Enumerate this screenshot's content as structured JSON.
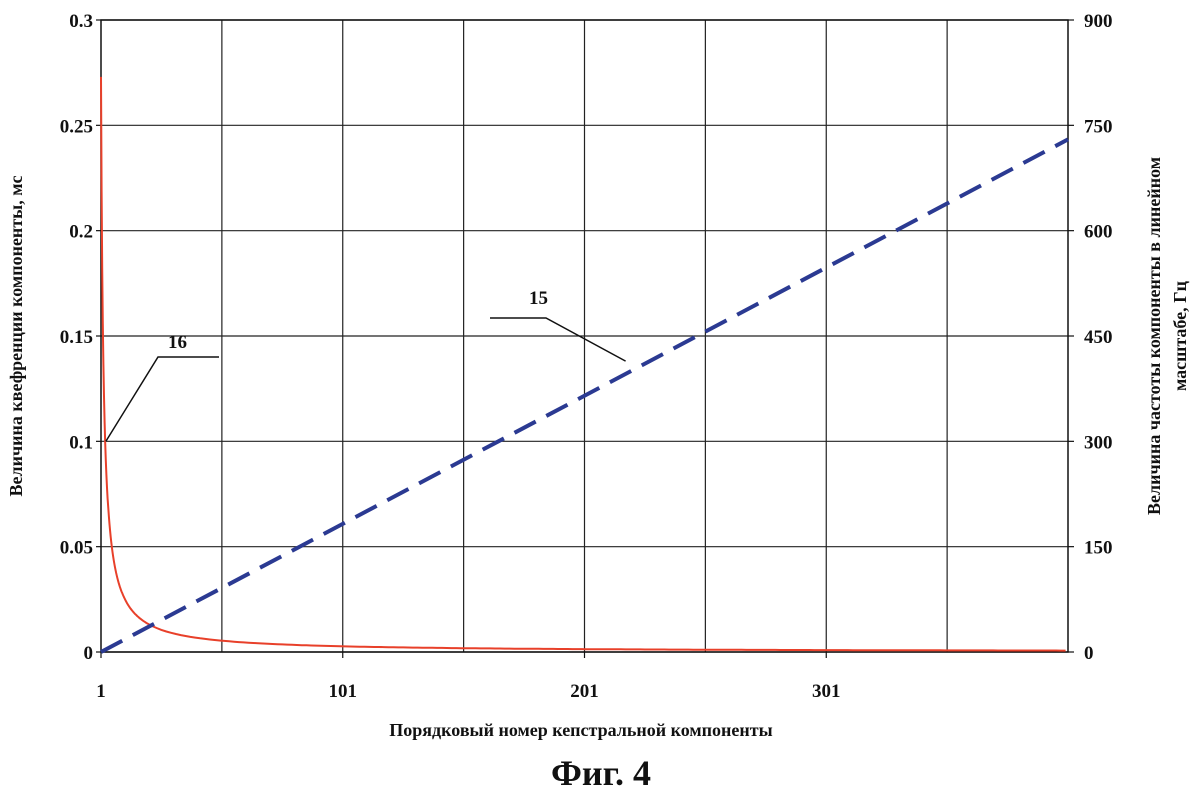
{
  "figure_caption": "Фиг. 4",
  "chart_data": {
    "type": "line",
    "xlabel": "Порядковый номер кепстральной компоненты",
    "ylabel_left": "Величина квефренции компоненты, мс",
    "ylabel_right_line1": "Величина частоты компоненты в линейном",
    "ylabel_right_line2": "масштабе, Гц",
    "x_ticks": [
      "1",
      "101",
      "201",
      "301"
    ],
    "xlim": [
      1,
      401
    ],
    "y_left_ticks": [
      "0",
      "0.05",
      "0.1",
      "0.15",
      "0.2",
      "0.25",
      "0.3"
    ],
    "ylim_left": [
      0,
      0.3
    ],
    "y_right_ticks": [
      "0",
      "150",
      "300",
      "450",
      "600",
      "750",
      "900"
    ],
    "ylim_right": [
      0,
      900
    ],
    "grid": true,
    "series": [
      {
        "name": "16",
        "axis": "left",
        "color": "#e8402a",
        "style": "solid",
        "x": [
          1,
          2,
          3,
          5,
          8,
          12,
          20,
          30,
          50,
          75,
          101,
          150,
          201,
          251,
          301,
          351,
          401
        ],
        "y": [
          0.273,
          0.137,
          0.091,
          0.055,
          0.034,
          0.023,
          0.0137,
          0.0091,
          0.0055,
          0.0036,
          0.0027,
          0.0018,
          0.0014,
          0.0011,
          0.0009,
          0.0008,
          0.0007
        ]
      },
      {
        "name": "15",
        "axis": "right",
        "color": "#2b3a92",
        "style": "dashed",
        "x": [
          1,
          401
        ],
        "y": [
          0,
          730
        ]
      }
    ],
    "annotations": [
      {
        "label": "16",
        "series": "16",
        "x": 3,
        "y": 0.1
      },
      {
        "label": "15",
        "series": "15",
        "x": 218,
        "y": 400
      }
    ]
  }
}
